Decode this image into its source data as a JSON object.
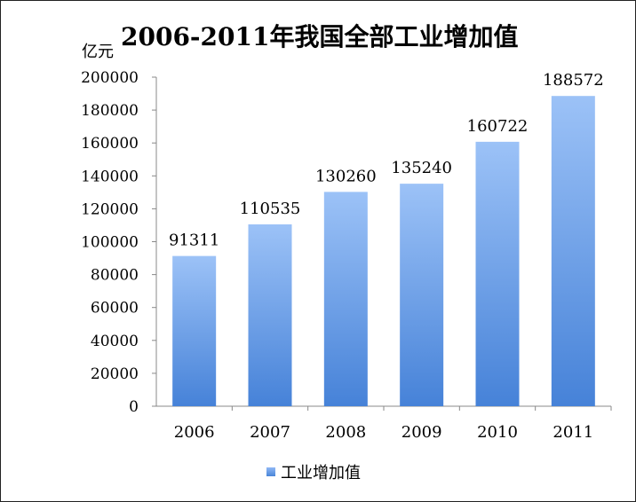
{
  "chart_data": {
    "type": "bar",
    "title": "2006-2011年我国全部工业增加值",
    "ylabel": "亿元",
    "xlabel": "",
    "categories": [
      "2006",
      "2007",
      "2008",
      "2009",
      "2010",
      "2011"
    ],
    "series": [
      {
        "name": "工业增加值",
        "values": [
          91311,
          110535,
          130260,
          135240,
          160722,
          188572
        ]
      }
    ],
    "ylim": [
      0,
      200000
    ],
    "yticks": [
      0,
      20000,
      40000,
      60000,
      80000,
      100000,
      120000,
      140000,
      160000,
      180000,
      200000
    ],
    "grid": false,
    "legend": "bottom",
    "colors": {
      "bar_top": "#9cc2f7",
      "bar_bottom": "#4682d8",
      "axis": "#888888"
    }
  }
}
